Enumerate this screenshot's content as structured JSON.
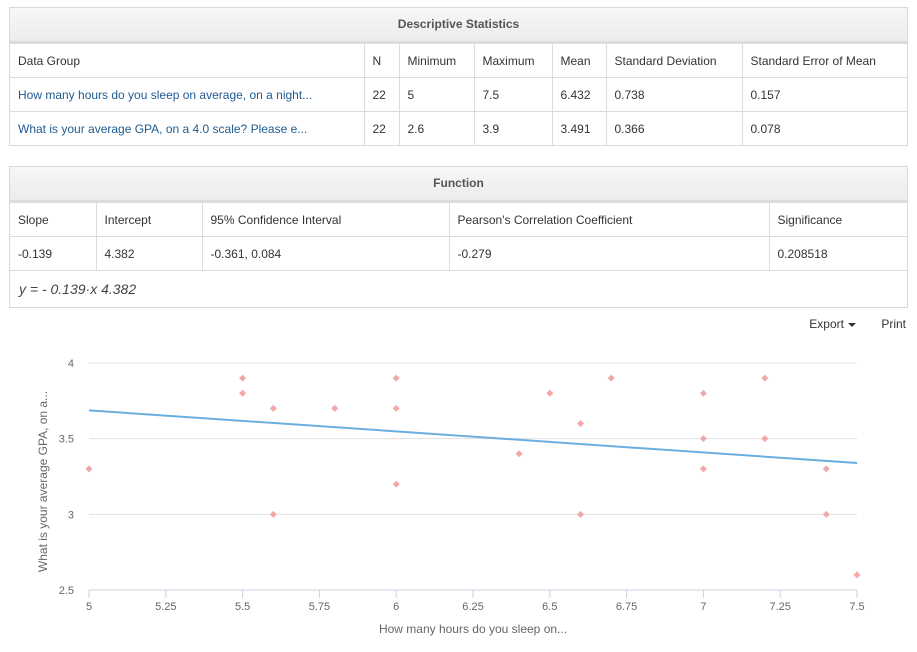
{
  "descriptive": {
    "title": "Descriptive Statistics",
    "headers": [
      "Data Group",
      "N",
      "Minimum",
      "Maximum",
      "Mean",
      "Standard Deviation",
      "Standard Error of Mean"
    ],
    "rows": [
      [
        "How many hours do you sleep on average, on a night...",
        "22",
        "5",
        "7.5",
        "6.432",
        "0.738",
        "0.157"
      ],
      [
        "What is your average GPA, on a 4.0 scale? Please e...",
        "22",
        "2.6",
        "3.9",
        "3.491",
        "0.366",
        "0.078"
      ]
    ]
  },
  "function": {
    "title": "Function",
    "headers": [
      "Slope",
      "Intercept",
      "95% Confidence Interval",
      "Pearson's Correlation Coefficient",
      "Significance"
    ],
    "row": [
      "-0.139",
      "4.382",
      "-0.361, 0.084",
      "-0.279",
      "0.208518"
    ],
    "formula": "y = - 0.139·x 4.382"
  },
  "toolbar": {
    "export_label": "Export",
    "print_label": "Print"
  },
  "colors": {
    "points": "#f4a7a9",
    "line": "#6aaee0",
    "link": "#1f5a92"
  },
  "chart_data": {
    "type": "scatter",
    "xlabel": "How many hours do you sleep on...",
    "ylabel": "What is your average GPA, on a...",
    "xlim": [
      5,
      7.5
    ],
    "ylim": [
      2.5,
      4
    ],
    "x_ticks": [
      "5",
      "5.25",
      "5.5",
      "5.75",
      "6",
      "6.25",
      "6.5",
      "6.75",
      "7",
      "7.25",
      "7.5"
    ],
    "y_ticks": [
      "2.5",
      "3",
      "3.5",
      "4"
    ],
    "grid": true,
    "points": [
      [
        5,
        3.3
      ],
      [
        5.5,
        3.9
      ],
      [
        5.5,
        3.8
      ],
      [
        5.6,
        3.7
      ],
      [
        5.6,
        3.0
      ],
      [
        5.8,
        3.7
      ],
      [
        6,
        3.9
      ],
      [
        6,
        3.7
      ],
      [
        6,
        3.2
      ],
      [
        6.4,
        3.4
      ],
      [
        6.5,
        3.8
      ],
      [
        6.6,
        3.6
      ],
      [
        6.6,
        3.0
      ],
      [
        6.7,
        3.9
      ],
      [
        7,
        3.8
      ],
      [
        7,
        3.5
      ],
      [
        7,
        3.3
      ],
      [
        7.2,
        3.9
      ],
      [
        7.2,
        3.5
      ],
      [
        7.4,
        3.3
      ],
      [
        7.4,
        3.0
      ],
      [
        7.5,
        2.6
      ]
    ],
    "regression": {
      "slope": -0.139,
      "intercept": 4.382
    }
  }
}
